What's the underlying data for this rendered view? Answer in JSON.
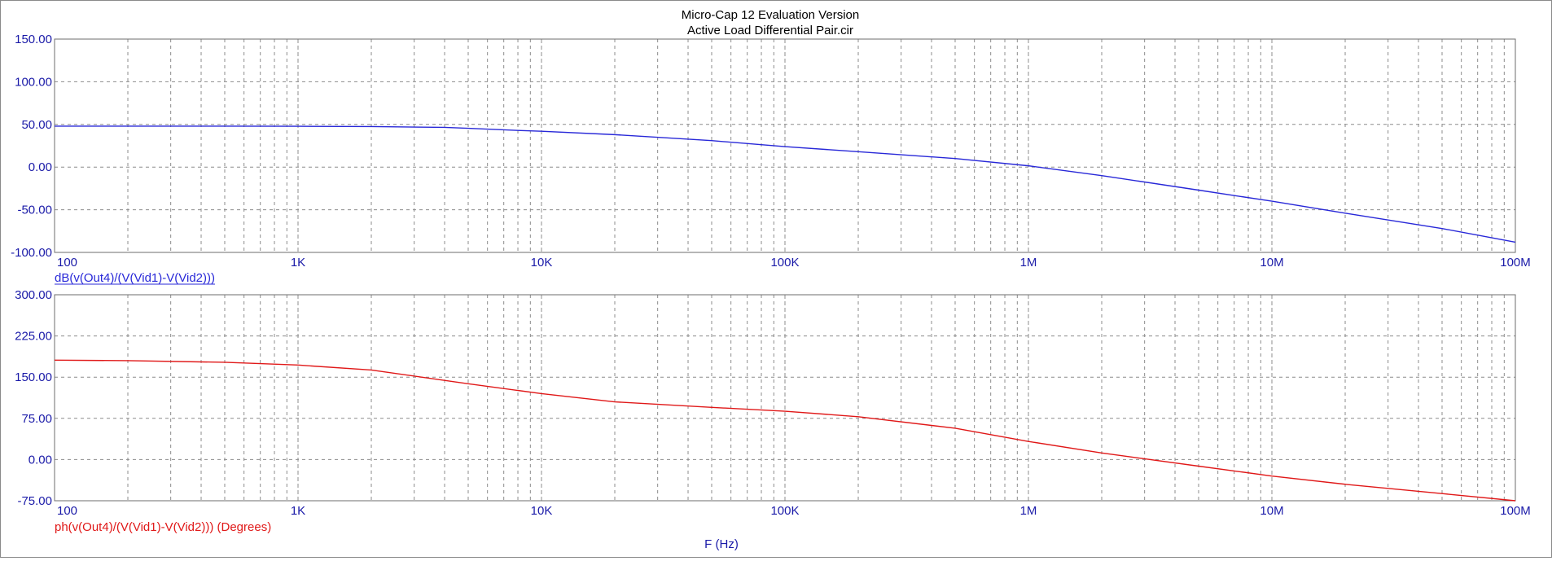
{
  "header": {
    "title": "Micro-Cap 12 Evaluation Version",
    "subtitle": "Active Load Differential Pair.cir"
  },
  "colors": {
    "text": "#1a1aa8",
    "magnitude_trace": "#2828d8",
    "phase_trace": "#e01818",
    "grid": "#8c8c8c",
    "frame": "#6e6e6e"
  },
  "chart_data": [
    {
      "type": "line",
      "scale_x": "log",
      "xlim": [
        100,
        100000000
      ],
      "ylim": [
        -100,
        150
      ],
      "x_tick_labels": [
        "100",
        "1K",
        "10K",
        "100K",
        "1M",
        "10M",
        "100M"
      ],
      "y_tick_labels": [
        "150.00",
        "100.00",
        "50.00",
        "0.00",
        "-50.00",
        "-100.00"
      ],
      "grid": true,
      "series": [
        {
          "name": "dB(v(Out4)/(V(Vid1)-V(Vid2)))",
          "x": [
            100,
            200,
            500,
            1000,
            2000,
            4000,
            5000,
            8000,
            10000,
            20000,
            50000,
            100000,
            200000,
            500000,
            1000000,
            2000000,
            5000000,
            10000000,
            20000000,
            50000000,
            100000000
          ],
          "y": [
            48,
            48,
            48,
            47.8,
            47.5,
            46.5,
            45.5,
            43,
            42,
            38,
            31,
            24,
            18,
            10,
            1.5,
            -10,
            -27,
            -40,
            -54,
            -72,
            -88
          ]
        }
      ]
    },
    {
      "type": "line",
      "scale_x": "log",
      "xlim": [
        100,
        100000000
      ],
      "ylim": [
        -75,
        300
      ],
      "x_tick_labels": [
        "100",
        "1K",
        "10K",
        "100K",
        "1M",
        "10M",
        "100M"
      ],
      "y_tick_labels": [
        "300.00",
        "225.00",
        "150.00",
        "75.00",
        "0.00",
        "-75.00"
      ],
      "xlabel": "F (Hz)",
      "grid": true,
      "series": [
        {
          "name": "ph(v(Out4)/(V(Vid1)-V(Vid2))) (Degrees)",
          "x": [
            100,
            200,
            500,
            1000,
            2000,
            5000,
            10000,
            20000,
            50000,
            100000,
            200000,
            500000,
            1000000,
            2000000,
            5000000,
            10000000,
            20000000,
            50000000,
            100000000
          ],
          "y": [
            181,
            180,
            177,
            172,
            163,
            138,
            120,
            105,
            95,
            88,
            78,
            57,
            33,
            12,
            -12,
            -30,
            -45,
            -62,
            -75
          ]
        }
      ]
    }
  ]
}
